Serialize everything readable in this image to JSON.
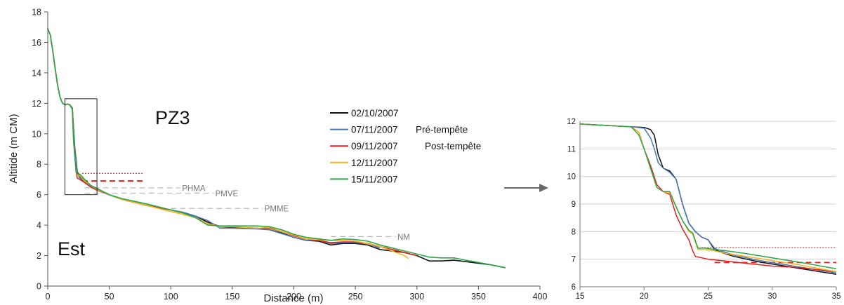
{
  "chart_data": [
    {
      "type": "line",
      "title": "PZ3",
      "corner_label": "Est",
      "xlabel": "Distance (m)",
      "ylabel": "Altitide (m CM)",
      "xlim": [
        0,
        400
      ],
      "ylim": [
        0,
        18
      ],
      "xticks": [
        "0",
        "50",
        "100",
        "150",
        "200",
        "250",
        "300",
        "350",
        "400"
      ],
      "yticks": [
        "0",
        "2",
        "4",
        "6",
        "8",
        "10",
        "12",
        "14",
        "16",
        "18"
      ],
      "grid": false,
      "legend_position": "center-right",
      "zoom_box": {
        "x": [
          14,
          40
        ],
        "y": [
          6,
          12.3
        ]
      },
      "series": [
        {
          "name": "02/10/2007",
          "color": "#111111",
          "x": [
            0,
            2,
            4,
            6,
            8,
            10,
            12,
            14,
            16,
            18,
            20,
            22,
            24,
            26,
            30,
            35,
            40,
            50,
            60,
            80,
            100,
            110,
            120,
            130,
            140,
            150,
            170,
            180,
            190,
            200,
            210,
            220,
            230,
            240,
            250,
            260,
            270,
            280,
            290,
            300,
            310,
            320,
            330,
            340,
            350,
            360,
            372
          ],
          "y": [
            16.9,
            16.5,
            15.5,
            14.3,
            13.2,
            12.4,
            12.0,
            11.9,
            11.95,
            11.9,
            11.7,
            9.0,
            7.5,
            7.2,
            6.9,
            6.6,
            6.4,
            6.0,
            5.7,
            5.3,
            5.0,
            4.8,
            4.6,
            4.2,
            3.9,
            3.85,
            3.8,
            3.7,
            3.5,
            3.2,
            3.0,
            2.95,
            2.7,
            2.8,
            2.8,
            2.7,
            2.4,
            2.3,
            2.2,
            2.0,
            1.65,
            1.65,
            1.7,
            1.6,
            1.5,
            1.4,
            1.2
          ]
        },
        {
          "name": "07/11/2007 Pré-tempête",
          "color": "#4a78b8",
          "x": [
            0,
            2,
            4,
            6,
            8,
            10,
            12,
            14,
            16,
            18,
            20,
            22,
            24,
            26,
            30,
            35,
            40,
            50,
            60,
            80,
            100,
            110,
            120,
            130,
            140,
            150,
            170,
            180,
            190,
            200,
            210,
            220,
            230,
            240,
            250,
            260,
            270
          ],
          "y": [
            16.9,
            16.5,
            15.5,
            14.3,
            13.2,
            12.4,
            12.0,
            11.9,
            11.95,
            11.9,
            11.7,
            8.8,
            7.4,
            7.1,
            6.8,
            6.5,
            6.3,
            6.0,
            5.7,
            5.3,
            5.0,
            4.85,
            4.6,
            4.3,
            3.8,
            3.8,
            3.75,
            3.7,
            3.45,
            3.2,
            3.0,
            3.0,
            2.8,
            2.85,
            2.85,
            2.8,
            2.5
          ]
        },
        {
          "name": "09/11/2007 Post-tempête",
          "color": "#e61e1e",
          "x": [
            0,
            2,
            4,
            6,
            8,
            10,
            12,
            14,
            16,
            18,
            20,
            21,
            22,
            23,
            24,
            26,
            30,
            35,
            40,
            50,
            60,
            80,
            100,
            110,
            120,
            130,
            140,
            150,
            170,
            180,
            190,
            200,
            210,
            220,
            230,
            240,
            250,
            260,
            270,
            280,
            290,
            300
          ],
          "y": [
            16.9,
            16.5,
            15.5,
            14.3,
            13.2,
            12.4,
            12.0,
            11.9,
            11.95,
            11.9,
            11.6,
            9.6,
            8.6,
            7.5,
            7.1,
            7.0,
            6.8,
            6.5,
            6.3,
            6.0,
            5.7,
            5.3,
            5.0,
            4.8,
            4.5,
            4.1,
            3.9,
            3.9,
            3.8,
            3.8,
            3.6,
            3.3,
            3.1,
            3.0,
            2.85,
            2.9,
            2.9,
            2.8,
            2.6,
            2.4,
            2.2,
            2.0
          ]
        },
        {
          "name": "12/11/2007",
          "color": "#f5b41e",
          "x": [
            0,
            2,
            4,
            6,
            8,
            10,
            12,
            14,
            16,
            18,
            20,
            21,
            22,
            23,
            24,
            26,
            30,
            35,
            40,
            50,
            60,
            80,
            100,
            110,
            120,
            130,
            140,
            150,
            170,
            180,
            190,
            200,
            210,
            220,
            230,
            240,
            250,
            260,
            270,
            280,
            290,
            293
          ],
          "y": [
            16.9,
            16.5,
            15.5,
            14.3,
            13.2,
            12.4,
            12.0,
            11.9,
            11.95,
            11.9,
            11.6,
            9.5,
            8.5,
            7.6,
            7.3,
            7.25,
            6.9,
            6.6,
            6.35,
            6.0,
            5.7,
            5.3,
            4.9,
            4.7,
            4.5,
            4.1,
            3.9,
            3.9,
            3.8,
            3.85,
            3.6,
            3.35,
            3.1,
            3.05,
            3.0,
            3.0,
            2.95,
            2.8,
            2.6,
            2.3,
            2.0,
            1.8
          ]
        },
        {
          "name": "15/11/2007",
          "color": "#2ca64a",
          "x": [
            0,
            2,
            4,
            6,
            8,
            10,
            12,
            14,
            16,
            18,
            20,
            21,
            22,
            23,
            24,
            26,
            30,
            35,
            40,
            50,
            60,
            80,
            100,
            110,
            120,
            130,
            140,
            150,
            170,
            180,
            190,
            200,
            210,
            220,
            230,
            240,
            250,
            260,
            270,
            280,
            290,
            300,
            310,
            320,
            330,
            340,
            350,
            360,
            372
          ],
          "y": [
            16.9,
            16.5,
            15.5,
            14.3,
            13.2,
            12.4,
            12.0,
            11.9,
            11.95,
            11.9,
            11.6,
            9.5,
            8.5,
            7.6,
            7.35,
            7.35,
            7.0,
            6.6,
            6.4,
            6.0,
            5.75,
            5.4,
            5.0,
            4.8,
            4.5,
            4.0,
            3.95,
            3.95,
            3.95,
            3.9,
            3.7,
            3.4,
            3.2,
            3.1,
            3.0,
            3.1,
            3.05,
            2.95,
            2.7,
            2.5,
            2.3,
            2.1,
            1.9,
            1.85,
            1.85,
            1.7,
            1.55,
            1.4,
            1.2
          ]
        }
      ],
      "reference_lines": [
        {
          "label": "",
          "y": 7.4,
          "x": [
            28,
            77
          ],
          "color": "#e61e1e",
          "style": "dotted"
        },
        {
          "label": "",
          "y": 6.9,
          "x": [
            28,
            77
          ],
          "color": "#e61e1e",
          "style": "dashed"
        },
        {
          "label": "PHMA",
          "y": 6.45,
          "x": [
            30,
            108
          ],
          "color": "#bbbbbb",
          "style": "dashed"
        },
        {
          "label": "PMVE",
          "y": 6.1,
          "x": [
            30,
            135
          ],
          "color": "#bbbbbb",
          "style": "dashed"
        },
        {
          "label": "PMME",
          "y": 5.1,
          "x": [
            100,
            175
          ],
          "color": "#bbbbbb",
          "style": "dashed"
        },
        {
          "label": "NM",
          "y": 3.25,
          "x": [
            230,
            283
          ],
          "color": "#bbbbbb",
          "style": "dashed"
        }
      ],
      "legend": [
        {
          "date": "02/10/2007",
          "note": "",
          "color": "#111111"
        },
        {
          "date": "07/11/2007",
          "note": "Pré-tempête",
          "color": "#4a78b8"
        },
        {
          "date": "09/11/2007",
          "note": "Post-tempête",
          "color": "#e61e1e"
        },
        {
          "date": "12/11/2007",
          "note": "",
          "color": "#f5b41e"
        },
        {
          "date": "15/11/2007",
          "note": "",
          "color": "#2ca64a"
        }
      ]
    },
    {
      "type": "line",
      "title": "",
      "xlabel": "",
      "ylabel": "",
      "xlim": [
        15,
        35
      ],
      "ylim": [
        6,
        12
      ],
      "xticks": [
        "15",
        "20",
        "25",
        "30",
        "35"
      ],
      "yticks": [
        "6",
        "7",
        "8",
        "9",
        "10",
        "11",
        "12"
      ],
      "grid": true,
      "series": [
        {
          "name": "02/10/2007",
          "color": "#111111",
          "x": [
            15,
            19,
            20,
            20.5,
            20.8,
            21.1,
            21.5,
            22,
            22.5,
            23,
            23.5,
            24,
            24.5,
            25,
            25.5,
            26,
            27,
            29,
            31,
            33,
            35
          ],
          "y": [
            11.9,
            11.8,
            11.78,
            11.7,
            11.5,
            10.8,
            10.3,
            10.2,
            9.9,
            9.0,
            8.3,
            8.0,
            7.8,
            7.7,
            7.35,
            7.25,
            7.1,
            6.9,
            6.75,
            6.6,
            6.45
          ]
        },
        {
          "name": "07/11/2007 Pré-tempête",
          "color": "#4a78b8",
          "x": [
            15,
            19,
            20,
            20.5,
            20.8,
            21.1,
            21.5,
            22,
            22.5,
            23,
            23.5,
            24,
            24.5,
            25,
            25.5,
            26,
            27,
            29,
            31,
            33,
            35
          ],
          "y": [
            11.9,
            11.8,
            11.75,
            11.4,
            11.0,
            10.5,
            10.3,
            10.15,
            9.9,
            9.0,
            8.3,
            8.0,
            7.8,
            7.7,
            7.4,
            7.3,
            7.15,
            6.95,
            6.8,
            6.65,
            6.5
          ]
        },
        {
          "name": "09/11/2007 Post-tempête",
          "color": "#e61e1e",
          "x": [
            15,
            19,
            19.6,
            20,
            20.5,
            21,
            21.5,
            22,
            22.5,
            23,
            23.5,
            23.8,
            24,
            24.5,
            25,
            26,
            28,
            30,
            32,
            35
          ],
          "y": [
            11.9,
            11.8,
            11.6,
            11.0,
            10.4,
            9.7,
            9.45,
            9.35,
            8.6,
            8.1,
            7.7,
            7.3,
            7.1,
            7.05,
            7.0,
            6.95,
            6.85,
            6.75,
            6.7,
            6.55
          ]
        },
        {
          "name": "12/11/2007",
          "color": "#f5b41e",
          "x": [
            15,
            19,
            19.6,
            20,
            20.5,
            21,
            21.5,
            22,
            22.5,
            23,
            23.5,
            23.8,
            24.2,
            24.8,
            25.5,
            26.5,
            28,
            30,
            32,
            35
          ],
          "y": [
            11.9,
            11.8,
            11.6,
            11.0,
            10.3,
            9.6,
            9.45,
            9.4,
            8.9,
            8.4,
            8.0,
            7.9,
            7.35,
            7.35,
            7.3,
            7.2,
            7.1,
            6.95,
            6.8,
            6.55
          ]
        },
        {
          "name": "15/11/2007",
          "color": "#2ca64a",
          "x": [
            15,
            19,
            19.6,
            20,
            20.5,
            21,
            21.5,
            22,
            22.5,
            23,
            23.5,
            23.8,
            24.2,
            24.8,
            25.5,
            26.5,
            28,
            30,
            32,
            35
          ],
          "y": [
            11.9,
            11.8,
            11.5,
            11.0,
            10.3,
            9.6,
            9.45,
            9.45,
            8.9,
            8.4,
            8.05,
            7.95,
            7.4,
            7.4,
            7.35,
            7.3,
            7.2,
            7.05,
            6.9,
            6.65
          ]
        }
      ],
      "reference_lines": [
        {
          "y": 7.42,
          "x": [
            24.5,
            35
          ],
          "color": "#e61e1e",
          "style": "dotted"
        },
        {
          "y": 6.88,
          "x": [
            25.5,
            35
          ],
          "color": "#e61e1e",
          "style": "dashed"
        }
      ]
    }
  ]
}
